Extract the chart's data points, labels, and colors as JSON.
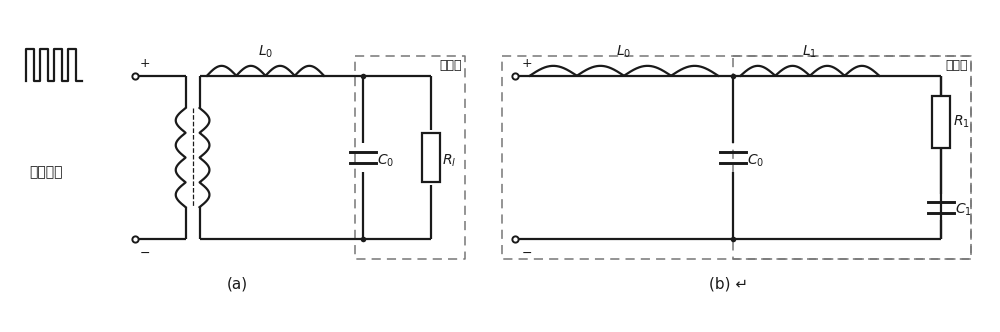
{
  "bg_color": "#ffffff",
  "line_color": "#1a1a1a",
  "line_width": 1.6,
  "dashed_color": "#777777",
  "label_a": "(a)",
  "label_b": "(b) ↵",
  "text_huannengqi": "换能器",
  "text_qudong": "驱动信号",
  "fig_width": 10.0,
  "fig_height": 3.32,
  "dpi": 100
}
